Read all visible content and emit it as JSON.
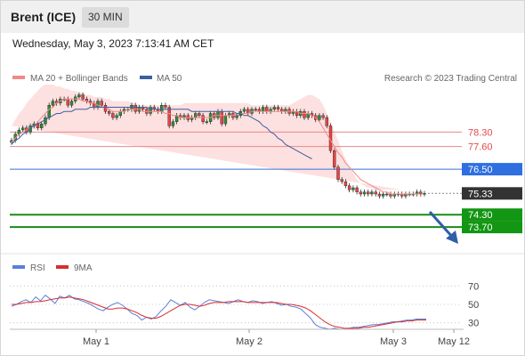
{
  "header": {
    "instrument": "Brent (ICE)",
    "timeframe": "30 MIN"
  },
  "timestamp": "Wednesday, May 3, 2023 7:13:41 AM CET",
  "legend": {
    "ma20": "MA 20 + Bollinger Bands",
    "ma50": "MA 50",
    "credit": "Research © 2023 Trading Central"
  },
  "rsi_legend": {
    "rsi": "RSI",
    "ma": "9MA"
  },
  "colors": {
    "ma20": "#f08a86",
    "ma50": "#3c5fa0",
    "band": "#fde0e0",
    "up": "#2e8b3a",
    "down": "#ea4444",
    "resistance": "#e88a8a",
    "pivot": "#3a6fd8",
    "support": "#1a8a1a",
    "arrow": "#2f5fa7",
    "rsi": "#5b80d8",
    "rsi_ma": "#d92d2d"
  },
  "chart_data": [
    {
      "type": "candlestick",
      "title": "Brent (ICE) 30 MIN",
      "ylim": [
        72.8,
        80.6
      ],
      "x_ticks": [
        "May 1",
        "May 2",
        "May 3",
        "May 12"
      ],
      "levels": [
        {
          "name": "resistance",
          "value": 78.3,
          "label": "78.30"
        },
        {
          "name": "resistance",
          "value": 77.6,
          "label": "77.60"
        },
        {
          "name": "pivot",
          "value": 76.5,
          "label": "76.50"
        },
        {
          "name": "last",
          "value": 75.33,
          "label": "75.33"
        },
        {
          "name": "support",
          "value": 74.3,
          "label": "74.30"
        },
        {
          "name": "support",
          "value": 73.7,
          "label": "73.70"
        }
      ],
      "close": [
        77.9,
        78.2,
        78.4,
        78.5,
        78.3,
        78.6,
        78.7,
        78.5,
        78.7,
        79.0,
        79.6,
        79.8,
        79.7,
        79.9,
        79.9,
        79.6,
        79.8,
        80.0,
        80.1,
        79.9,
        79.8,
        79.7,
        79.5,
        79.8,
        79.6,
        79.3,
        79.2,
        79.0,
        79.1,
        79.3,
        79.4,
        79.4,
        79.6,
        79.3,
        79.5,
        79.4,
        79.2,
        79.5,
        79.4,
        79.3,
        79.6,
        79.5,
        78.6,
        78.8,
        79.1,
        79.0,
        79.1,
        78.9,
        79.0,
        79.2,
        79.1,
        78.8,
        78.8,
        79.2,
        79.0,
        79.3,
        78.7,
        79.1,
        79.2,
        79.0,
        79.1,
        79.3,
        79.4,
        79.2,
        79.4,
        79.4,
        79.3,
        79.5,
        79.3,
        79.4,
        79.5,
        79.4,
        79.3,
        79.4,
        79.2,
        79.3,
        79.1,
        79.3,
        79.0,
        79.2,
        79.1,
        78.9,
        79.1,
        79.0,
        78.6,
        77.4,
        76.6,
        76.0,
        75.9,
        75.7,
        75.5,
        75.6,
        75.4,
        75.3,
        75.4,
        75.3,
        75.4,
        75.3,
        75.2,
        75.3,
        75.3,
        75.2,
        75.3,
        75.3,
        75.2,
        75.3,
        75.3,
        75.3,
        75.4,
        75.3,
        75.33
      ],
      "ma20": [
        77.8,
        78.0,
        78.2,
        78.3,
        78.4,
        78.5,
        78.6,
        78.8,
        79.0,
        79.2,
        79.4,
        79.5,
        79.7,
        79.8,
        79.9,
        79.9,
        79.9,
        79.9,
        79.9,
        79.8,
        79.8,
        79.7,
        79.7,
        79.6,
        79.5,
        79.5,
        79.4,
        79.3,
        79.3,
        79.3,
        79.3,
        79.4,
        79.4,
        79.4,
        79.4,
        79.3,
        79.3,
        79.3,
        79.3,
        79.3,
        79.3,
        79.2,
        79.2,
        79.1,
        79.1,
        79.0,
        79.0,
        79.0,
        79.0,
        79.0,
        79.0,
        79.0,
        79.0,
        79.0,
        79.1,
        79.1,
        79.1,
        79.1,
        79.1,
        79.1,
        79.2,
        79.2,
        79.2,
        79.2,
        79.3,
        79.3,
        79.3,
        79.3,
        79.3,
        79.3,
        79.3,
        79.3,
        79.3,
        79.3,
        79.3,
        79.3,
        79.3,
        79.2,
        79.2,
        79.2,
        79.1,
        79.0,
        78.8,
        78.5,
        78.2,
        77.9,
        77.6,
        77.3,
        77.1,
        76.8,
        76.6,
        76.4,
        76.2,
        76.0,
        75.9,
        75.8,
        75.7,
        75.6,
        75.5,
        75.4,
        75.4,
        75.3,
        75.3,
        75.3,
        75.3,
        75.3,
        75.3,
        75.3,
        75.3,
        75.3
      ],
      "bb_upper": [
        78.6,
        78.9,
        79.2,
        79.4,
        79.7,
        79.9,
        80.1,
        80.3,
        80.5,
        80.6,
        80.6,
        80.6,
        80.5,
        80.5,
        80.4,
        80.4,
        80.3,
        80.3,
        80.2,
        80.2,
        80.1,
        80.1,
        80.0,
        80.0,
        80.0,
        79.9,
        79.9,
        79.8,
        79.8,
        79.8,
        79.8,
        79.8,
        79.7,
        79.7,
        79.6,
        79.6,
        79.6,
        79.6,
        79.6,
        79.6,
        79.6,
        79.6,
        79.6,
        79.6,
        79.6,
        79.6,
        79.7,
        79.7,
        79.7,
        79.7,
        79.7,
        79.7,
        79.7,
        79.7,
        79.7,
        79.7,
        79.7,
        79.7,
        79.7,
        79.7,
        79.7,
        79.7,
        79.7,
        79.7,
        79.6,
        79.6,
        79.6,
        79.6,
        79.6,
        79.6,
        79.6,
        79.6,
        79.6,
        79.6,
        79.6,
        79.7,
        79.8,
        79.9,
        80.0,
        80.1,
        80.1,
        80.0,
        79.9,
        79.6,
        79.2,
        78.8,
        78.3,
        77.9,
        77.4,
        77.0,
        76.6,
        76.3,
        76.0,
        75.8,
        75.7,
        75.6,
        75.6,
        75.5,
        75.5,
        75.5,
        75.5,
        75.5,
        75.5,
        75.5,
        75.5
      ],
      "bb_lower": [
        77.2,
        77.2,
        77.3,
        77.4,
        77.6,
        77.8,
        78.0,
        78.2,
        78.4,
        78.6,
        78.8,
        78.9,
        79.0,
        79.1,
        79.2,
        79.2,
        79.2,
        79.3,
        79.3,
        79.3,
        79.3,
        79.2,
        79.1,
        79.0,
        78.9,
        78.8,
        78.7,
        78.7,
        78.6,
        78.6,
        78.6,
        78.6,
        78.6,
        78.6,
        78.6,
        78.6,
        78.6,
        78.6,
        78.6,
        78.6,
        78.6,
        78.6,
        78.6,
        78.6,
        78.6,
        78.6,
        78.6,
        78.6,
        78.6,
        78.6,
        78.7,
        78.8,
        78.8,
        78.8,
        78.8,
        78.8,
        78.8,
        78.8,
        78.8,
        78.9,
        78.9,
        78.9,
        78.9,
        78.9,
        78.9,
        78.9,
        78.9,
        78.9,
        78.9,
        78.9,
        78.9,
        78.9,
        78.8,
        78.7,
        78.6,
        78.4,
        78.1,
        77.7,
        77.2,
        76.7,
        76.2,
        75.7,
        75.3,
        75.0,
        74.8,
        74.7,
        74.7,
        74.8,
        74.9,
        75.0,
        75.0,
        75.1,
        75.1,
        75.1,
        75.1,
        75.1,
        75.1,
        75.1,
        75.1,
        75.1
      ],
      "ma50": [
        77.7,
        77.9,
        78.0,
        78.2,
        78.3,
        78.5,
        78.6,
        78.7,
        78.8,
        78.9,
        79.0,
        79.1,
        79.2,
        79.2,
        79.3,
        79.3,
        79.3,
        79.4,
        79.4,
        79.4,
        79.4,
        79.5,
        79.5,
        79.5,
        79.5,
        79.5,
        79.5,
        79.5,
        79.5,
        79.5,
        79.5,
        79.5,
        79.5,
        79.5,
        79.5,
        79.5,
        79.5,
        79.4,
        79.4,
        79.4,
        79.4,
        79.4,
        79.4,
        79.4,
        79.4,
        79.4,
        79.4,
        79.4,
        79.3,
        79.3,
        79.3,
        79.3,
        79.3,
        79.3,
        79.3,
        79.3,
        79.3,
        79.3,
        79.3,
        79.3,
        79.2,
        79.2,
        79.1,
        79.1,
        79.0,
        78.9,
        78.8,
        78.6,
        78.5,
        78.3,
        78.2,
        78.0,
        77.9,
        77.7,
        77.6,
        77.5,
        77.4,
        77.3,
        77.2,
        77.1,
        77.0
      ]
    },
    {
      "type": "line",
      "title": "RSI",
      "ylim": [
        20,
        80
      ],
      "y_ticks": [
        70,
        50,
        30
      ],
      "rsi": [
        48,
        50,
        53,
        55,
        52,
        58,
        54,
        60,
        56,
        51,
        59,
        57,
        60,
        56,
        55,
        53,
        51,
        48,
        45,
        43,
        47,
        50,
        52,
        49,
        45,
        40,
        38,
        33,
        36,
        34,
        37,
        43,
        48,
        55,
        52,
        49,
        52,
        47,
        44,
        48,
        52,
        55,
        54,
        53,
        52,
        51,
        53,
        55,
        53,
        52,
        54,
        53,
        51,
        52,
        53,
        51,
        49,
        50,
        48,
        47,
        45,
        40,
        35,
        28,
        25,
        24,
        23,
        24,
        23,
        23,
        24,
        25,
        25,
        26,
        27,
        28,
        28,
        29,
        30,
        31,
        31,
        32,
        33,
        33,
        34,
        34,
        34
      ],
      "ma": [
        50,
        50,
        51,
        52,
        52,
        53,
        53,
        54,
        55,
        56,
        57,
        57,
        58,
        57,
        56,
        55,
        53,
        51,
        49,
        47,
        45,
        45,
        46,
        46,
        45,
        43,
        41,
        38,
        36,
        35,
        35,
        37,
        40,
        43,
        46,
        49,
        50,
        50,
        49,
        48,
        49,
        51,
        52,
        52,
        52,
        53,
        53,
        53,
        53,
        52,
        52,
        52,
        52,
        52,
        52,
        52,
        51,
        50,
        50,
        49,
        48,
        46,
        43,
        39,
        35,
        31,
        28,
        26,
        25,
        24,
        24,
        24,
        24,
        25,
        25,
        26,
        27,
        28,
        29,
        30,
        31,
        31,
        32,
        32,
        33,
        33,
        33
      ]
    }
  ]
}
